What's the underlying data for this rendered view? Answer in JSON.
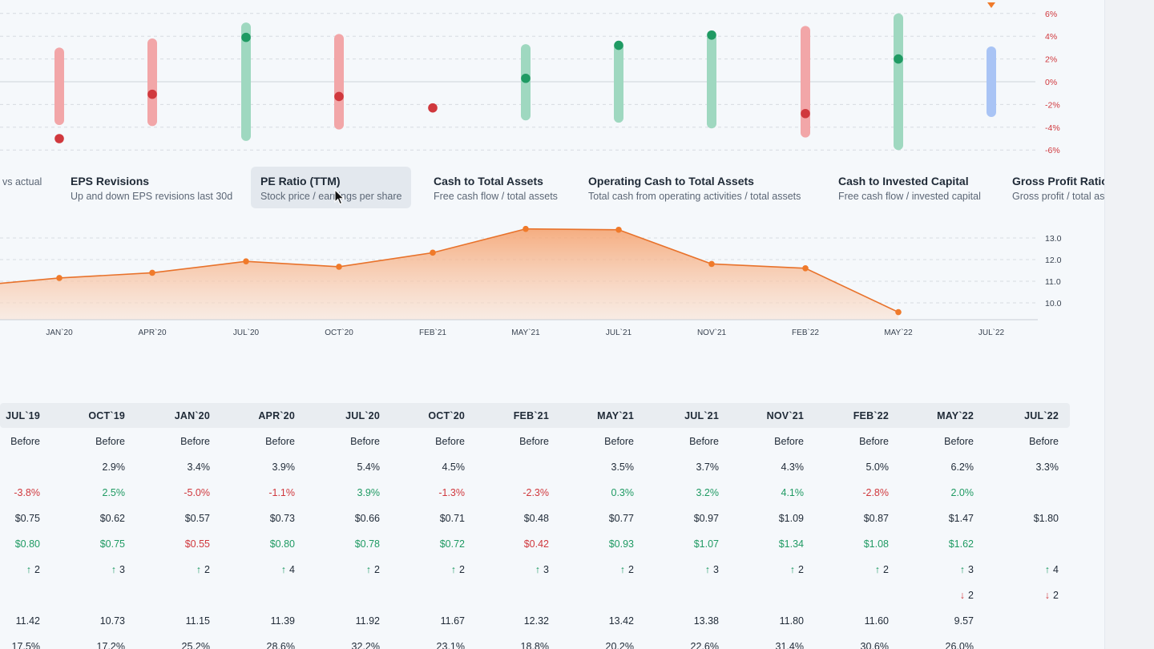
{
  "colors": {
    "positive": "#1f9a63",
    "negative": "#d0383d",
    "neutral": "#7fa6ec",
    "accent": "#f07a2a"
  },
  "chart_data": [
    {
      "type": "range-dot",
      "y_tick_labels": [
        "6%",
        "4%",
        "2%",
        "0%",
        "-2%",
        "-4%",
        "-6%"
      ],
      "ylim": [
        -6,
        6
      ],
      "points": [
        {
          "range": [
            -3.8,
            3.0
          ],
          "actual": -5.0,
          "status": "negative"
        },
        {
          "range": [
            -3.9,
            3.8
          ],
          "actual": -1.1,
          "status": "negative"
        },
        {
          "range": [
            -5.2,
            5.2
          ],
          "actual": 3.9,
          "status": "positive"
        },
        {
          "range": [
            -4.2,
            4.2
          ],
          "actual": -1.3,
          "status": "negative"
        },
        {
          "range": null,
          "actual": -2.3,
          "status": "negative"
        },
        {
          "range": [
            -3.4,
            3.3
          ],
          "actual": 0.3,
          "status": "positive"
        },
        {
          "range": [
            -3.6,
            3.5
          ],
          "actual": 3.2,
          "status": "positive"
        },
        {
          "range": [
            -4.1,
            4.2
          ],
          "actual": 4.1,
          "status": "positive"
        },
        {
          "range": [
            -4.9,
            4.9
          ],
          "actual": -2.8,
          "status": "negative"
        },
        {
          "range": [
            -6.0,
            6.0
          ],
          "actual": 2.0,
          "status": "positive"
        },
        {
          "range": [
            -3.1,
            3.1
          ],
          "actual": null,
          "status": "neutral"
        }
      ]
    },
    {
      "type": "area",
      "categories": [
        "JAN`20",
        "APR`20",
        "JUL`20",
        "OCT`20",
        "FEB`21",
        "MAY`21",
        "JUL`21",
        "NOV`21",
        "FEB`22",
        "MAY`22",
        "JUL`22"
      ],
      "y_tick_labels": [
        "13.0",
        "12.0",
        "11.0",
        "10.0"
      ],
      "ylim": [
        9.2,
        13.6
      ],
      "lead_in_value": 10.9,
      "values": [
        11.15,
        11.39,
        11.92,
        11.67,
        12.32,
        13.42,
        13.38,
        11.8,
        11.6,
        9.57,
        null
      ]
    }
  ],
  "metrics": [
    {
      "title": "",
      "subtitle": "vs actual"
    },
    {
      "title": "EPS Revisions",
      "subtitle": "Up and down EPS revisions last 30d"
    },
    {
      "title": "PE Ratio (TTM)",
      "subtitle": "Stock price / earnings per share"
    },
    {
      "title": "Cash to Total Assets",
      "subtitle": "Free cash flow / total assets"
    },
    {
      "title": "Operating Cash to Total Assets",
      "subtitle": "Total cash from operating activities / total assets"
    },
    {
      "title": "Cash to Invested Capital",
      "subtitle": "Free cash flow / invested capital"
    },
    {
      "title": "Gross Profit Ratio",
      "subtitle": "Gross profit / total assets"
    }
  ],
  "table": {
    "columns": [
      "JUL`19",
      "OCT`19",
      "JAN`20",
      "APR`20",
      "JUL`20",
      "OCT`20",
      "FEB`21",
      "MAY`21",
      "JUL`21",
      "NOV`21",
      "FEB`22",
      "MAY`22",
      "JUL`22"
    ],
    "rows": [
      {
        "kind": "plain",
        "cells": [
          "Before",
          "Before",
          "Before",
          "Before",
          "Before",
          "Before",
          "Before",
          "Before",
          "Before",
          "Before",
          "Before",
          "Before",
          "Before"
        ]
      },
      {
        "kind": "plain",
        "cells": [
          "",
          "2.9%",
          "3.4%",
          "3.9%",
          "5.4%",
          "4.5%",
          "",
          "3.5%",
          "3.7%",
          "4.3%",
          "5.0%",
          "6.2%",
          "3.3%"
        ]
      },
      {
        "kind": "signed",
        "cells": [
          "-3.8%",
          "2.5%",
          "-5.0%",
          "-1.1%",
          "3.9%",
          "-1.3%",
          "-2.3%",
          "0.3%",
          "3.2%",
          "4.1%",
          "-2.8%",
          "2.0%",
          ""
        ]
      },
      {
        "kind": "plain",
        "cells": [
          "$0.75",
          "$0.62",
          "$0.57",
          "$0.73",
          "$0.66",
          "$0.71",
          "$0.48",
          "$0.77",
          "$0.97",
          "$1.09",
          "$0.87",
          "$1.47",
          "$1.80"
        ]
      },
      {
        "kind": "colored",
        "status": [
          "positive",
          "positive",
          "negative",
          "positive",
          "positive",
          "positive",
          "negative",
          "positive",
          "positive",
          "positive",
          "positive",
          "positive",
          ""
        ],
        "cells": [
          "$0.80",
          "$0.75",
          "$0.55",
          "$0.80",
          "$0.78",
          "$0.72",
          "$0.42",
          "$0.93",
          "$1.07",
          "$1.34",
          "$1.08",
          "$1.62",
          ""
        ]
      },
      {
        "kind": "up",
        "cells": [
          "2",
          "3",
          "2",
          "4",
          "2",
          "2",
          "3",
          "2",
          "3",
          "2",
          "2",
          "3",
          "4"
        ]
      },
      {
        "kind": "down",
        "cells": [
          "",
          "",
          "",
          "",
          "",
          "",
          "",
          "",
          "",
          "",
          "",
          "2",
          "2"
        ]
      },
      {
        "kind": "plain",
        "cells": [
          "11.42",
          "10.73",
          "11.15",
          "11.39",
          "11.92",
          "11.67",
          "12.32",
          "13.42",
          "13.38",
          "11.80",
          "11.60",
          "9.57",
          ""
        ]
      },
      {
        "kind": "plain",
        "cells": [
          "17.5%",
          "17.2%",
          "25.2%",
          "28.6%",
          "32.2%",
          "23.1%",
          "18.8%",
          "20.2%",
          "22.6%",
          "31.4%",
          "30.6%",
          "26.0%",
          ""
        ]
      }
    ]
  }
}
